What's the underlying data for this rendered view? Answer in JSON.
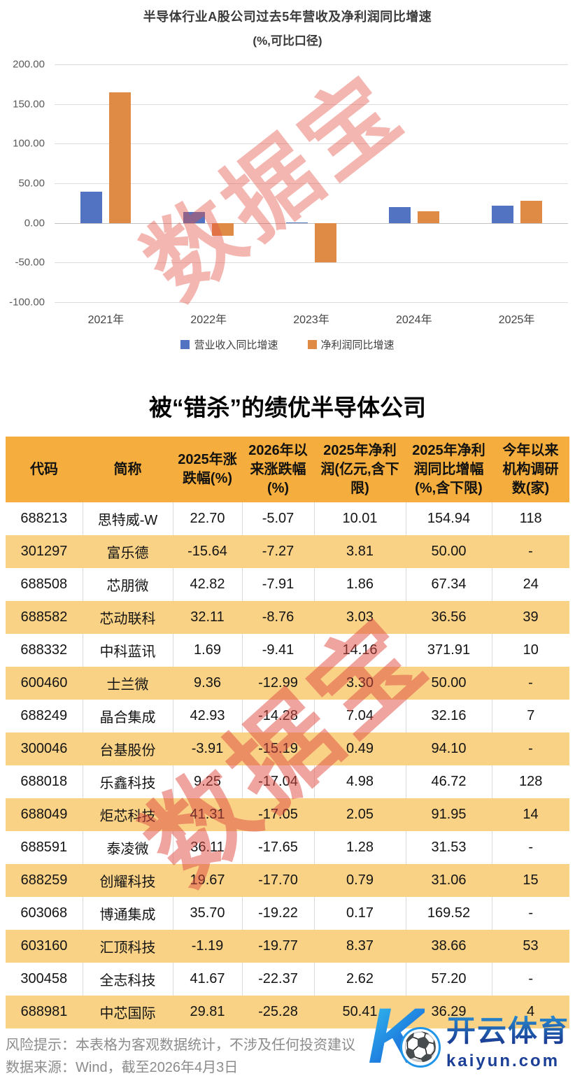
{
  "chart_data": {
    "type": "bar",
    "title": "半导体行业A股公司过去5年营收及净利润同比增速",
    "subtitle": "(%,可比口径)",
    "categories": [
      "2021年",
      "2022年",
      "2023年",
      "2024年",
      "2025年"
    ],
    "series": [
      {
        "name": "营业收入同比增速",
        "color": "#5273C2",
        "values": [
          39,
          14,
          1,
          20,
          22
        ]
      },
      {
        "name": "净利润同比增速",
        "color": "#DF8A45",
        "values": [
          165,
          -16,
          -50,
          15,
          28
        ]
      }
    ],
    "ylim": [
      -100,
      200
    ],
    "yticks": [
      200,
      150,
      100,
      50,
      0,
      -50,
      -100
    ],
    "ytick_labels": [
      "200.00",
      "150.00",
      "100.00",
      "50.00",
      "0.00",
      "-50.00",
      "-100.00"
    ],
    "grid": true,
    "legend_position": "bottom"
  },
  "watermark": {
    "text": "数据宝"
  },
  "table": {
    "title": "被“错杀”的绩优半导体公司",
    "header_bg": "#F5AE3D",
    "alt_row_bg": "#F9D286",
    "headers": [
      "代码",
      "简称",
      "2025年涨跌幅(%)",
      "2026年以来涨跌幅(%)",
      "2025年净利润(亿元,含下限)",
      "2025年净利润同比增幅(%,含下限)",
      "今年以来机构调研数(家)"
    ],
    "rows": [
      [
        "688213",
        "思特威-W",
        "22.70",
        "-5.07",
        "10.01",
        "154.94",
        "118"
      ],
      [
        "301297",
        "富乐德",
        "-15.64",
        "-7.27",
        "3.81",
        "50.00",
        "-"
      ],
      [
        "688508",
        "芯朋微",
        "42.82",
        "-7.91",
        "1.86",
        "67.34",
        "24"
      ],
      [
        "688582",
        "芯动联科",
        "32.11",
        "-8.76",
        "3.03",
        "36.56",
        "39"
      ],
      [
        "688332",
        "中科蓝讯",
        "1.69",
        "-9.41",
        "14.16",
        "371.91",
        "10"
      ],
      [
        "600460",
        "士兰微",
        "9.36",
        "-12.99",
        "3.30",
        "50.00",
        "-"
      ],
      [
        "688249",
        "晶合集成",
        "42.93",
        "-14.28",
        "7.04",
        "32.16",
        "7"
      ],
      [
        "300046",
        "台基股份",
        "-3.91",
        "-15.19",
        "0.49",
        "94.10",
        "-"
      ],
      [
        "688018",
        "乐鑫科技",
        "9.25",
        "-17.04",
        "4.98",
        "46.72",
        "128"
      ],
      [
        "688049",
        "炬芯科技",
        "41.31",
        "-17.05",
        "2.05",
        "91.95",
        "14"
      ],
      [
        "688591",
        "泰凌微",
        "36.11",
        "-17.65",
        "1.28",
        "31.53",
        "-"
      ],
      [
        "688259",
        "创耀科技",
        "19.67",
        "-17.70",
        "0.79",
        "31.06",
        "15"
      ],
      [
        "603068",
        "博通集成",
        "35.70",
        "-19.22",
        "0.17",
        "169.52",
        "-"
      ],
      [
        "603160",
        "汇顶科技",
        "-1.19",
        "-19.77",
        "8.37",
        "38.66",
        "53"
      ],
      [
        "300458",
        "全志科技",
        "41.67",
        "-22.37",
        "2.62",
        "57.20",
        "-"
      ],
      [
        "688981",
        "中芯国际",
        "29.81",
        "-25.28",
        "50.41",
        "36.29",
        "4"
      ]
    ]
  },
  "footer": {
    "risk": "风险提示：本表格为客观数据统计，不涉及任何投资建议",
    "source": "数据来源：Wind，截至2026年4月3日"
  },
  "logo": {
    "k": "K",
    "ball": "⚽",
    "name": "开云体育",
    "domain": "kaiyun.com"
  }
}
